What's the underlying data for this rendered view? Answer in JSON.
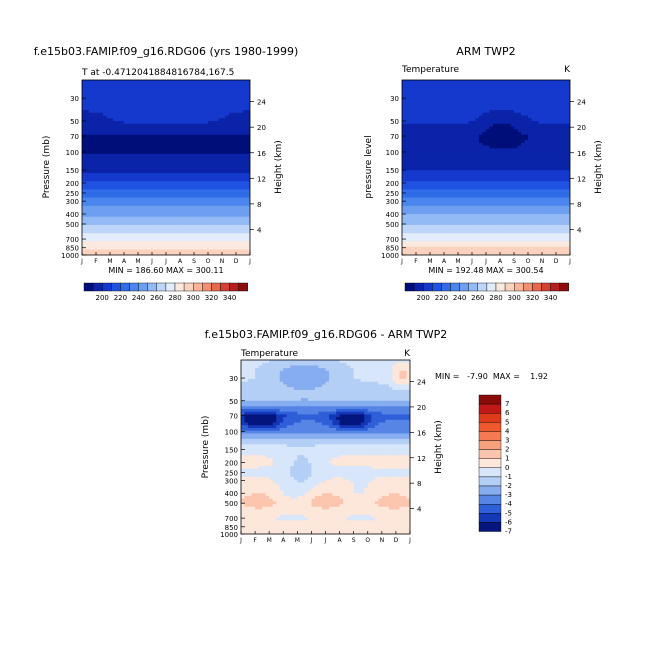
{
  "chart_data": [
    {
      "type": "heatmap",
      "title": "f.e15b03.FAMIP.f09_g16.RDG06 (yrs 1980-1999)",
      "subtitle_left": "T at -0.4712041884816784,167.5",
      "subtitle_right": "",
      "ylabel": "Pressure (mb)",
      "ylabel_right": "Height (km)",
      "x_ticks": [
        "J",
        "F",
        "M",
        "A",
        "M",
        "J",
        "J",
        "A",
        "S",
        "O",
        "N",
        "D",
        "J"
      ],
      "y_ticks": [
        30,
        50,
        70,
        100,
        150,
        200,
        250,
        300,
        400,
        500,
        700,
        850,
        1000
      ],
      "y_log": true,
      "yrange": [
        1000,
        20
      ],
      "height_ticks": [
        24,
        20,
        16,
        12,
        8,
        4
      ],
      "min_max_text": "MIN = 186.60  MAX = 300.11",
      "levels": [
        30,
        50,
        70,
        100,
        150,
        200,
        250,
        300,
        400,
        500,
        700,
        850,
        1000
      ],
      "profile": [
        205,
        201,
        189,
        189,
        198,
        212,
        223,
        233,
        248,
        258,
        277,
        289,
        296
      ],
      "legend_labels": [
        "200",
        "220",
        "240",
        "260",
        "280",
        "300",
        "320",
        "340"
      ]
    },
    {
      "type": "heatmap",
      "title": "ARM TWP2",
      "subtitle_left": "Temperature",
      "subtitle_right": "K",
      "ylabel": "pressure level",
      "ylabel_right": "Height (km)",
      "x_ticks": [
        "J",
        "F",
        "M",
        "A",
        "M",
        "J",
        "J",
        "A",
        "S",
        "O",
        "N",
        "D",
        "J"
      ],
      "y_ticks": [
        30,
        50,
        70,
        100,
        150,
        200,
        250,
        300,
        400,
        500,
        700,
        850,
        1000
      ],
      "y_log": true,
      "yrange": [
        1000,
        20
      ],
      "height_ticks": [
        24,
        20,
        16,
        12,
        8,
        4
      ],
      "min_max_text": "MIN = 192.48  MAX = 300.54",
      "levels": [
        30,
        50,
        70,
        100,
        150,
        200,
        250,
        300,
        400,
        500,
        700,
        850,
        1000
      ],
      "profile": [
        207,
        199,
        190,
        191,
        199,
        213,
        224,
        234,
        249,
        259,
        278,
        290,
        297
      ],
      "legend_labels": [
        "200",
        "220",
        "240",
        "260",
        "280",
        "300",
        "320",
        "340"
      ]
    },
    {
      "type": "heatmap",
      "title": "f.e15b03.FAMIP.f09_g16.RDG06 - ARM TWP2",
      "subtitle_left": "Temperature",
      "subtitle_right": "K",
      "ylabel": "Pressure (mb)",
      "ylabel_right": "Height (km)",
      "x_ticks": [
        "J",
        "F",
        "M",
        "A",
        "M",
        "J",
        "J",
        "A",
        "S",
        "O",
        "N",
        "D",
        "J"
      ],
      "y_ticks": [
        30,
        50,
        70,
        100,
        150,
        200,
        250,
        300,
        400,
        500,
        700,
        850,
        1000
      ],
      "y_log": true,
      "yrange": [
        1000,
        20
      ],
      "height_ticks": [
        24,
        20,
        16,
        12,
        8,
        4
      ],
      "min_max_text": "MIN =   -7.90  MAX =    1.92",
      "levels": [
        30,
        50,
        70,
        100,
        150,
        200,
        250,
        300,
        400,
        500,
        700,
        850,
        1000
      ],
      "profile": [
        -1.2,
        -2.5,
        -4.8,
        -3.6,
        -0.6,
        -0.4,
        -0.6,
        -0.5,
        -0.3,
        0.3,
        -0.6,
        0.2,
        0.4
      ],
      "legend_labels": [
        "7",
        "6",
        "5",
        "4",
        "3",
        "2",
        "1",
        "0",
        "-1",
        "-2",
        "-3",
        "-4",
        "-5",
        "-6",
        "-7"
      ]
    }
  ],
  "colors": {
    "temp_scale": [
      "#000e7a",
      "#0a23a8",
      "#1439cc",
      "#1f52e0",
      "#2f6ce8",
      "#4b86ee",
      "#6d9ff1",
      "#93baf4",
      "#bdd5f8",
      "#e2ecfb",
      "#fbe8df",
      "#fbd2bd",
      "#f7b498",
      "#f08f72",
      "#e56a4f",
      "#d24133",
      "#b41e1e",
      "#8b0c0c"
    ],
    "diff_scale": [
      "#8b0a0a",
      "#c01818",
      "#e03a1c",
      "#f0582e",
      "#f57a52",
      "#f89f7e",
      "#fbc6ad",
      "#fde6da",
      "#d7e6fa",
      "#b4cff6",
      "#86adf0",
      "#5685e6",
      "#2f5fd8",
      "#1338b8",
      "#04157e"
    ]
  }
}
